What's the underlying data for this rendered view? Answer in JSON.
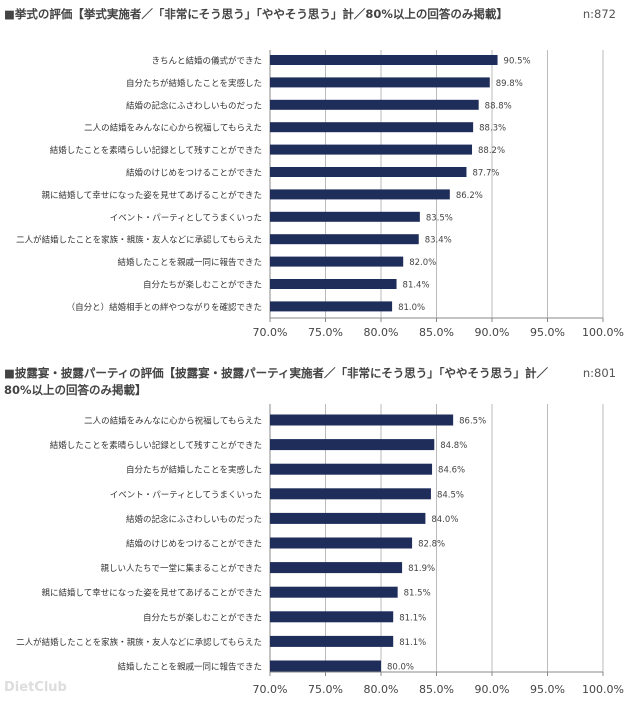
{
  "chart_data": [
    {
      "type": "bar",
      "orientation": "horizontal",
      "title": "■挙式の評価【挙式実施者／「非常にそう思う」「ややそう思う」計／80%以上の回答のみ掲載】",
      "n_label": "n:872",
      "categories": [
        "きちんと結婚の儀式ができた",
        "自分たちが結婚したことを実感した",
        "結婚の記念にふさわしいものだった",
        "二人の結婚をみんなに心から祝福してもらえた",
        "結婚したことを素晴らしい記録として残すことができた",
        "結婚のけじめをつけることができた",
        "親に結婚して幸せになった姿を見せてあげることができた",
        "イベント・パーティとしてうまくいった",
        "二人が結婚したことを家族・親族・友人などに承認してもらえた",
        "結婚したことを親戚一同に報告できた",
        "自分たちが楽しむことができた",
        "（自分と）結婚相手との絆やつながりを確認できた"
      ],
      "values": [
        90.5,
        89.8,
        88.8,
        88.3,
        88.2,
        87.7,
        86.2,
        83.5,
        83.4,
        82.0,
        81.4,
        81.0
      ],
      "value_labels": [
        "90.5%",
        "89.8%",
        "88.8%",
        "88.3%",
        "88.2%",
        "87.7%",
        "86.2%",
        "83.5%",
        "83.4%",
        "82.0%",
        "81.4%",
        "81.0%"
      ],
      "xlim": [
        70,
        100
      ],
      "ticks": [
        "70.0%",
        "75.0%",
        "80.0%",
        "85.0%",
        "90.0%",
        "95.0%",
        "100.0%"
      ],
      "grid": true,
      "color": "#1f2d5a"
    },
    {
      "type": "bar",
      "orientation": "horizontal",
      "title": "■披露宴・披露パーティの評価【披露宴・披露パーティ実施者／「非常にそう思う」「ややそう思う」計／",
      "title2": "80%以上の回答のみ掲載】",
      "n_label": "n:801",
      "categories": [
        "二人の結婚をみんなに心から祝福してもらえた",
        "結婚したことを素晴らしい記録として残すことができた",
        "自分たちが結婚したことを実感した",
        "イベント・パーティとしてうまくいった",
        "結婚の記念にふさわしいものだった",
        "結婚のけじめをつけることができた",
        "親しい人たちで一堂に集まることができた",
        "親に結婚して幸せになった姿を見せてあげることができた",
        "自分たちが楽しむことができた",
        "二人が結婚したことを家族・親族・友人などに承認してもらえた",
        "結婚したことを親戚一同に報告できた"
      ],
      "values": [
        86.5,
        84.8,
        84.6,
        84.5,
        84.0,
        82.8,
        81.9,
        81.5,
        81.1,
        81.1,
        80.0
      ],
      "value_labels": [
        "86.5%",
        "84.8%",
        "84.6%",
        "84.5%",
        "84.0%",
        "82.8%",
        "81.9%",
        "81.5%",
        "81.1%",
        "81.1%",
        "80.0%"
      ],
      "xlim": [
        70,
        100
      ],
      "ticks": [
        "70.0%",
        "75.0%",
        "80.0%",
        "85.0%",
        "90.0%",
        "95.0%",
        "100.0%"
      ],
      "grid": true,
      "color": "#1f2d5a"
    }
  ],
  "watermark": "DietClub"
}
